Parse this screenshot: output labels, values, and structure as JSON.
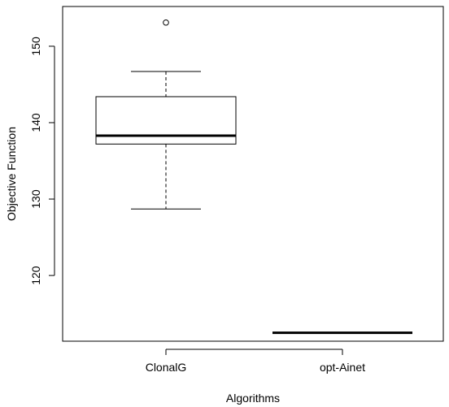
{
  "chart_data": {
    "type": "boxplot",
    "xlabel": "Algorithms",
    "ylabel": "Objective Function",
    "categories": [
      "ClonalG",
      "opt-Ainet"
    ],
    "y_ticks": [
      120,
      130,
      140,
      150
    ],
    "y_tick_labels": [
      "120",
      "130",
      "140",
      "150"
    ],
    "ylim": [
      111.4,
      155.2
    ],
    "boxes": [
      {
        "category": "ClonalG",
        "whisker_low": 128.7,
        "q1": 137.2,
        "median": 138.3,
        "q3": 143.4,
        "whisker_high": 146.7,
        "outliers": [
          153.1
        ]
      },
      {
        "category": "opt-Ainet",
        "whisker_low": 112.5,
        "q1": 112.5,
        "median": 112.5,
        "q3": 112.5,
        "whisker_high": 112.5,
        "outliers": []
      }
    ],
    "grid": false,
    "colors": {
      "stroke": "#000000",
      "background": "#ffffff"
    }
  }
}
